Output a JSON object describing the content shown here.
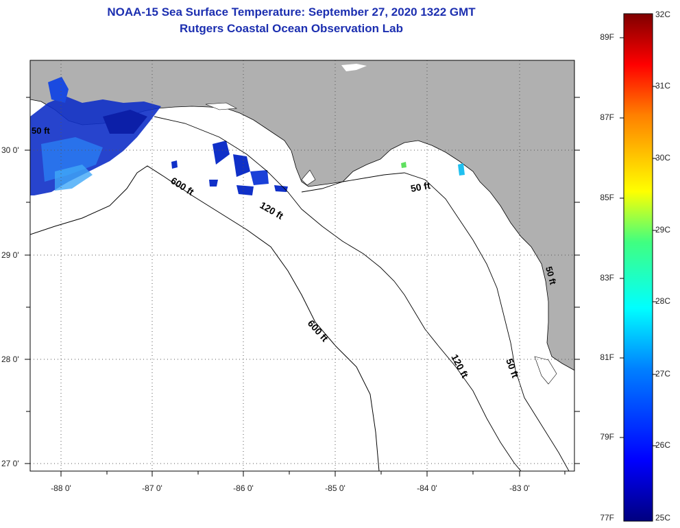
{
  "header": {
    "title_line1": "NOAA-15 Sea Surface Temperature:  September 27, 2020 1322 GMT",
    "title_line2": "Rutgers Coastal Ocean Observation Lab"
  },
  "axes": {
    "longitude_ticks": [
      "-88 0'",
      "-87 0'",
      "-86 0'",
      "-85 0'",
      "-84 0'",
      "-83 0'"
    ],
    "latitude_ticks": [
      "30 0'",
      "29 0'",
      "28 0'",
      "27 0'"
    ]
  },
  "contours": {
    "label_600": "600 ft",
    "label_120": "120 ft",
    "label_50": "50 ft",
    "label_partial": "50 ft"
  },
  "colorbar": {
    "fahrenheit": [
      "89F",
      "87F",
      "85F",
      "83F",
      "81F",
      "79F",
      "77F"
    ],
    "celsius": [
      "32C",
      "31C",
      "30C",
      "29C",
      "28C",
      "27C",
      "26C",
      "25C"
    ]
  },
  "colors": {
    "land": "#b0b0b0",
    "ocean": "#ffffff",
    "title": "#1c2fb0",
    "sst_cold": "#1030c8"
  }
}
